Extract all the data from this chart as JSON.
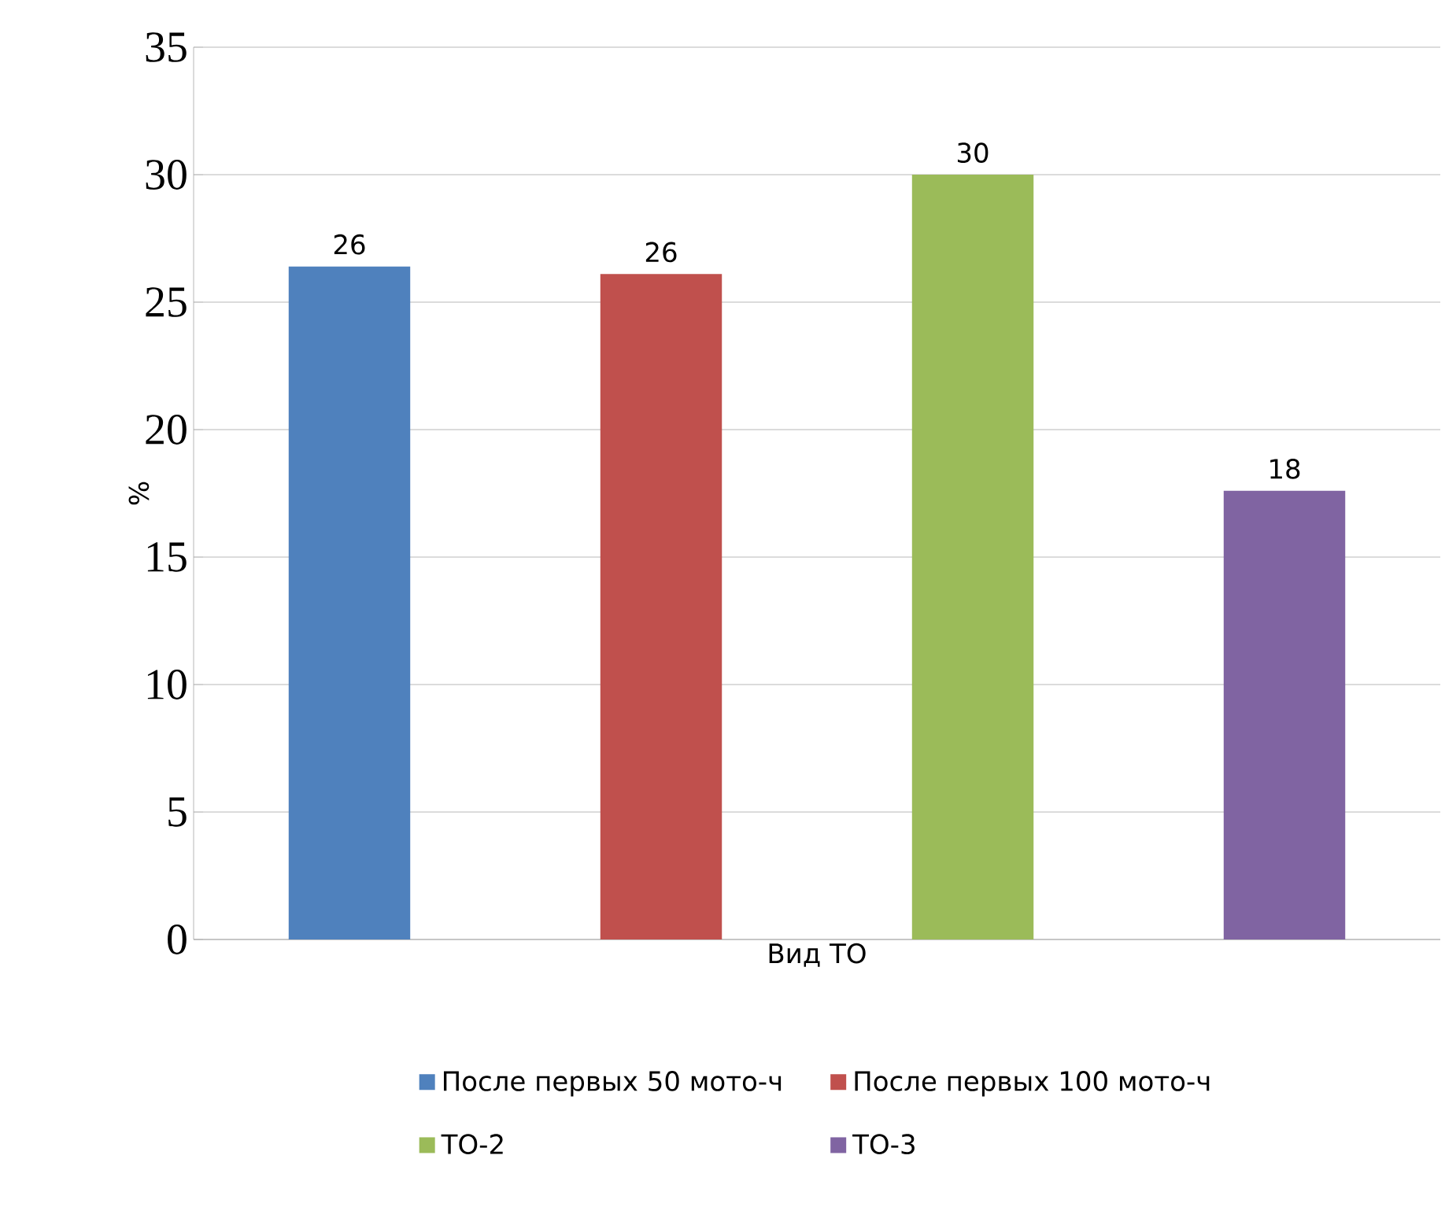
{
  "chart_data": {
    "type": "bar",
    "xlabel": "Вид ТО",
    "ylabel": "%",
    "categories": [
      null
    ],
    "series": [
      {
        "name": "После первых 50 мото-ч",
        "color": "#4f81bd",
        "values": [
          26.4
        ],
        "value_labels": [
          "26"
        ]
      },
      {
        "name": "После первых 100 мото-ч",
        "color": "#c0504d",
        "values": [
          26.1
        ],
        "value_labels": [
          "26"
        ]
      },
      {
        "name": "ТО-2",
        "color": "#9bbb59",
        "values": [
          30
        ],
        "value_labels": [
          "30"
        ]
      },
      {
        "name": "ТО-3",
        "color": "#8064a2",
        "values": [
          17.6
        ],
        "value_labels": [
          "18"
        ]
      }
    ],
    "ylim": [
      0,
      35
    ],
    "yticks": [
      0,
      5,
      10,
      15,
      20,
      25,
      30,
      35
    ],
    "grid": "y",
    "legend": "bottom"
  }
}
